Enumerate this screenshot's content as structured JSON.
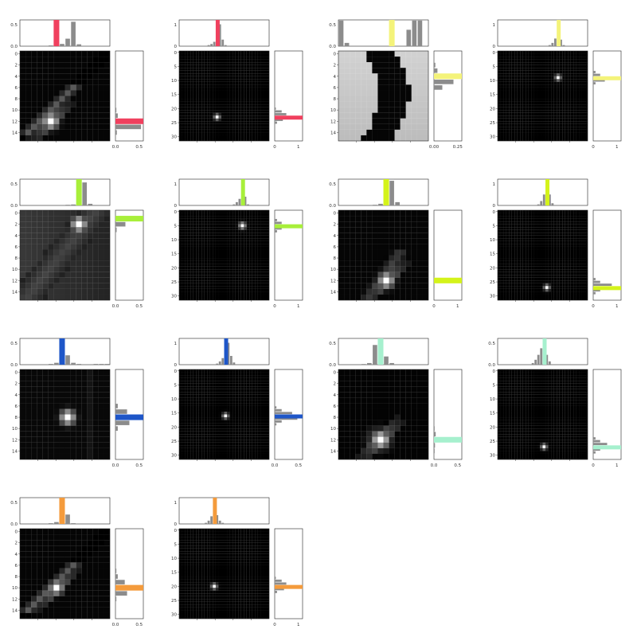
{
  "chart_data": [
    {
      "type": "heatmap",
      "grid": 16,
      "hotspot": [
        5,
        12
      ],
      "hot_sigma": 0.9,
      "background": "diagonal-streak",
      "accent": "#f0405e",
      "top_ticks": [
        "0.5",
        "0.0"
      ],
      "top_max": 0.7,
      "right_ticks": [
        "0.0",
        "0.5"
      ],
      "right_max": 0.6,
      "yticks": [
        "0",
        "2",
        "4",
        "6",
        "8",
        "10",
        "12",
        "14"
      ],
      "top_bars": [
        0.02,
        0.03,
        0.06,
        0.2,
        0.65,
        0.05
      ],
      "top_bars_start": 5,
      "right_bars": [
        0.02,
        0.05,
        0.45,
        0.55,
        0.03
      ],
      "right_bars_start": 10,
      "accent_top_index": 6,
      "accent_right_index": 12
    },
    {
      "type": "heatmap",
      "grid": 32,
      "hotspot": [
        13,
        23
      ],
      "hot_sigma": 0.7,
      "background": "black",
      "accent": "#f0405e",
      "top_ticks": [
        "1",
        "0"
      ],
      "top_max": 1.2,
      "right_ticks": [
        "0",
        "1"
      ],
      "right_max": 1.2,
      "yticks": [
        "0",
        "5",
        "10",
        "15",
        "20",
        "25",
        "30"
      ],
      "top_bars": [
        0.05,
        0.1,
        0.2,
        0.6,
        1.0,
        0.3,
        0.05
      ],
      "top_bars_start": 10,
      "right_bars": [
        0.05,
        0.3,
        0.5,
        1.0,
        0.35,
        0.1
      ],
      "right_bars_start": 20,
      "accent_top_index": 13,
      "accent_right_index": 23
    },
    {
      "type": "heatmap",
      "grid": 16,
      "hotspot": [
        8,
        6
      ],
      "hot_sigma": 0,
      "background": "dark-band",
      "accent": "#f4f37a",
      "top_ticks": [
        "0.5",
        "0.0"
      ],
      "top_max": 0.8,
      "right_ticks": [
        "0.00",
        "0.25"
      ],
      "right_max": 0.4,
      "yticks": [
        "0",
        "2",
        "4",
        "6",
        "8",
        "10",
        "12",
        "14"
      ],
      "top_bars": [
        0.78,
        0.1,
        0.0,
        0.0,
        0.0,
        0.0,
        0.0,
        0.0,
        0.0,
        0.0,
        0.0,
        0.0,
        0.5,
        0.78,
        0.78
      ],
      "top_bars_start": 0,
      "right_bars": [
        0.02,
        0.05,
        0.35,
        0.28,
        0.12,
        0.0
      ],
      "right_bars_start": 2,
      "accent_top_index": 9,
      "accent_right_index": 4
    },
    {
      "type": "heatmap",
      "grid": 32,
      "hotspot": [
        21,
        9
      ],
      "hot_sigma": 0.7,
      "background": "black",
      "accent": "#f4f37a",
      "top_ticks": [
        "1",
        "0"
      ],
      "top_max": 1.2,
      "right_ticks": [
        "0",
        "1"
      ],
      "right_max": 1.2,
      "yticks": [
        "0",
        "5",
        "10",
        "15",
        "20",
        "25",
        "30"
      ],
      "top_bars": [
        0.05,
        0.15,
        0.35,
        1.0,
        0.3,
        0.05
      ],
      "top_bars_start": 18,
      "right_bars": [
        0.1,
        0.3,
        1.0,
        0.5,
        0.1
      ],
      "right_bars_start": 7,
      "accent_top_index": 21,
      "accent_right_index": 9
    },
    {
      "type": "heatmap",
      "grid": 16,
      "hotspot": [
        10,
        2
      ],
      "hot_sigma": 0.9,
      "background": "gray-smear",
      "accent": "#a8ef3a",
      "top_ticks": [
        "0.5",
        "0.0"
      ],
      "top_max": 0.8,
      "right_ticks": [
        "0.0",
        "0.5"
      ],
      "right_max": 0.7,
      "yticks": [
        "0",
        "2",
        "4",
        "6",
        "8",
        "10",
        "12",
        "14"
      ],
      "top_bars": [
        0.02,
        0.03,
        0.05,
        0.7,
        0.05
      ],
      "top_bars_start": 8,
      "right_bars": [
        0.65,
        0.25,
        0.03
      ],
      "right_bars_start": 1,
      "accent_top_index": 10,
      "accent_right_index": 1
    },
    {
      "type": "heatmap",
      "grid": 32,
      "hotspot": [
        22,
        5
      ],
      "hot_sigma": 0.8,
      "background": "black",
      "accent": "#a8ef3a",
      "top_ticks": [
        "1",
        "0"
      ],
      "top_max": 1.2,
      "right_ticks": [
        "0",
        "1"
      ],
      "right_max": 1.2,
      "yticks": [
        "0",
        "5",
        "10",
        "15",
        "20",
        "25",
        "30"
      ],
      "top_bars": [
        0.05,
        0.15,
        0.3,
        0.9,
        0.4,
        0.05
      ],
      "top_bars_start": 19,
      "right_bars": [
        0.1,
        0.3,
        1.0,
        0.3,
        0.1
      ],
      "right_bars_start": 3,
      "accent_top_index": 22,
      "accent_right_index": 5
    },
    {
      "type": "heatmap",
      "grid": 16,
      "hotspot": [
        8,
        12
      ],
      "hot_sigma": 0.9,
      "background": "lower-streak",
      "accent": "#d4f31a",
      "top_ticks": [
        "0.5",
        "0.0"
      ],
      "top_max": 0.8,
      "right_ticks": [
        "0",
        "1"
      ],
      "right_max": 1.1,
      "yticks": [
        "0",
        "2",
        "4",
        "6",
        "8",
        "10",
        "12",
        "14"
      ],
      "top_bars": [
        0.02,
        0.05,
        0.1,
        0.75,
        0.1
      ],
      "top_bars_start": 6,
      "right_bars": [
        0.0,
        0.02,
        1.0,
        0.02
      ],
      "right_bars_start": 10,
      "accent_top_index": 8,
      "accent_right_index": 12
    },
    {
      "type": "heatmap",
      "grid": 32,
      "hotspot": [
        17,
        27
      ],
      "hot_sigma": 0.7,
      "background": "black",
      "accent": "#d4f31a",
      "top_ticks": [
        "1",
        "0"
      ],
      "top_max": 1.2,
      "right_ticks": [
        "0",
        "1"
      ],
      "right_max": 1.2,
      "yticks": [
        "0",
        "5",
        "10",
        "15",
        "20",
        "25",
        "30"
      ],
      "top_bars": [
        0.05,
        0.2,
        0.5,
        1.0,
        0.5,
        0.1
      ],
      "top_bars_start": 14,
      "right_bars": [
        0.1,
        0.3,
        0.8,
        1.0,
        0.3,
        0.1
      ],
      "right_bars_start": 24,
      "accent_top_index": 17,
      "accent_right_index": 27
    },
    {
      "type": "heatmap",
      "grid": 16,
      "hotspot": [
        8,
        8
      ],
      "hot_sigma": 0.9,
      "background": "faint-frame",
      "accent": "#1e56c8",
      "top_ticks": [
        "0.5",
        "0.0"
      ],
      "top_max": 0.7,
      "right_ticks": [
        "0.0",
        "0.5"
      ],
      "right_max": 0.6,
      "yticks": [
        "0",
        "2",
        "4",
        "6",
        "8",
        "10",
        "12",
        "14"
      ],
      "top_bars": [
        0.02,
        0.05,
        0.6,
        0.25,
        0.05,
        0.02,
        0.0,
        0.0,
        0.02,
        0.02,
        0.02
      ],
      "top_bars_start": 5,
      "right_bars": [
        0.05,
        0.25,
        0.55,
        0.3,
        0.05
      ],
      "right_bars_start": 6,
      "accent_top_index": 7,
      "accent_right_index": 8
    },
    {
      "type": "heatmap",
      "grid": 32,
      "hotspot": [
        16,
        16
      ],
      "hot_sigma": 0.7,
      "background": "black",
      "accent": "#1e56c8",
      "top_ticks": [
        "1",
        "0"
      ],
      "top_max": 1.2,
      "right_ticks": [
        "0.0",
        "0.5"
      ],
      "right_max": 0.8,
      "yticks": [
        "0",
        "5",
        "10",
        "15",
        "20",
        "25",
        "30"
      ],
      "top_bars": [
        0.05,
        0.15,
        0.3,
        0.5,
        1.0,
        0.4,
        0.1
      ],
      "top_bars_start": 13,
      "right_bars": [
        0.05,
        0.2,
        0.5,
        0.75,
        0.65,
        0.2,
        0.05
      ],
      "right_bars_start": 13,
      "accent_top_index": 16,
      "accent_right_index": 16
    },
    {
      "type": "heatmap",
      "grid": 16,
      "hotspot": [
        7,
        12
      ],
      "hot_sigma": 1.0,
      "background": "lower-blob",
      "accent": "#a6f0ce",
      "top_ticks": [
        "0.5",
        "0.0"
      ],
      "top_max": 0.8,
      "right_ticks": [
        "0.0",
        "0.5"
      ],
      "right_max": 0.8,
      "yticks": [
        "0",
        "2",
        "4",
        "6",
        "8",
        "10",
        "12",
        "14"
      ],
      "top_bars": [
        0.02,
        0.05,
        0.6,
        0.7,
        0.25,
        0.05
      ],
      "top_bars_start": 4,
      "right_bars": [
        0.02,
        0.05,
        0.75,
        0.03,
        0.02
      ],
      "right_bars_start": 10,
      "accent_top_index": 7,
      "accent_right_index": 12
    },
    {
      "type": "heatmap",
      "grid": 32,
      "hotspot": [
        16,
        27
      ],
      "hot_sigma": 0.7,
      "background": "black",
      "accent": "#a6f0ce",
      "top_ticks": [
        "0.5",
        "0.0"
      ],
      "top_max": 0.8,
      "right_ticks": [
        "0",
        "1"
      ],
      "right_max": 1.2,
      "yticks": [
        "0",
        "5",
        "10",
        "15",
        "20",
        "25",
        "30"
      ],
      "top_bars": [
        0.05,
        0.15,
        0.3,
        0.5,
        0.65,
        0.3,
        0.1
      ],
      "top_bars_start": 12,
      "right_bars": [
        0.1,
        0.3,
        0.6,
        0.9,
        0.3,
        0.1
      ],
      "right_bars_start": 24,
      "accent_top_index": 16,
      "accent_right_index": 27
    },
    {
      "type": "heatmap",
      "grid": 16,
      "hotspot": [
        6,
        10
      ],
      "hot_sigma": 0.8,
      "background": "diagonal-streak",
      "accent": "#f49b3c",
      "top_ticks": [
        "0.5",
        "0.0"
      ],
      "top_max": 0.7,
      "right_ticks": [
        "0.0",
        "0.5"
      ],
      "right_max": 0.6,
      "yticks": [
        "0",
        "2",
        "4",
        "6",
        "8",
        "10",
        "12",
        "14"
      ],
      "top_bars": [
        0.02,
        0.05,
        0.65,
        0.25,
        0.02
      ],
      "top_bars_start": 5,
      "right_bars": [
        0.02,
        0.05,
        0.2,
        0.5,
        0.25,
        0.02
      ],
      "right_bars_start": 7,
      "accent_top_index": 7,
      "accent_right_index": 10
    },
    {
      "type": "heatmap",
      "grid": 32,
      "hotspot": [
        12,
        20
      ],
      "hot_sigma": 0.7,
      "background": "black",
      "accent": "#f49b3c",
      "top_ticks": [
        "1",
        "0"
      ],
      "top_max": 1.2,
      "right_ticks": [
        "0",
        "1"
      ],
      "right_max": 1.2,
      "yticks": [
        "0",
        "5",
        "10",
        "15",
        "20",
        "25",
        "30"
      ],
      "top_bars": [
        0.05,
        0.15,
        0.35,
        1.0,
        0.4,
        0.15,
        0.05
      ],
      "top_bars_start": 9,
      "right_bars": [
        0.05,
        0.3,
        0.5,
        0.9,
        0.4,
        0.1
      ],
      "right_bars_start": 17,
      "accent_top_index": 12,
      "accent_right_index": 20
    }
  ]
}
